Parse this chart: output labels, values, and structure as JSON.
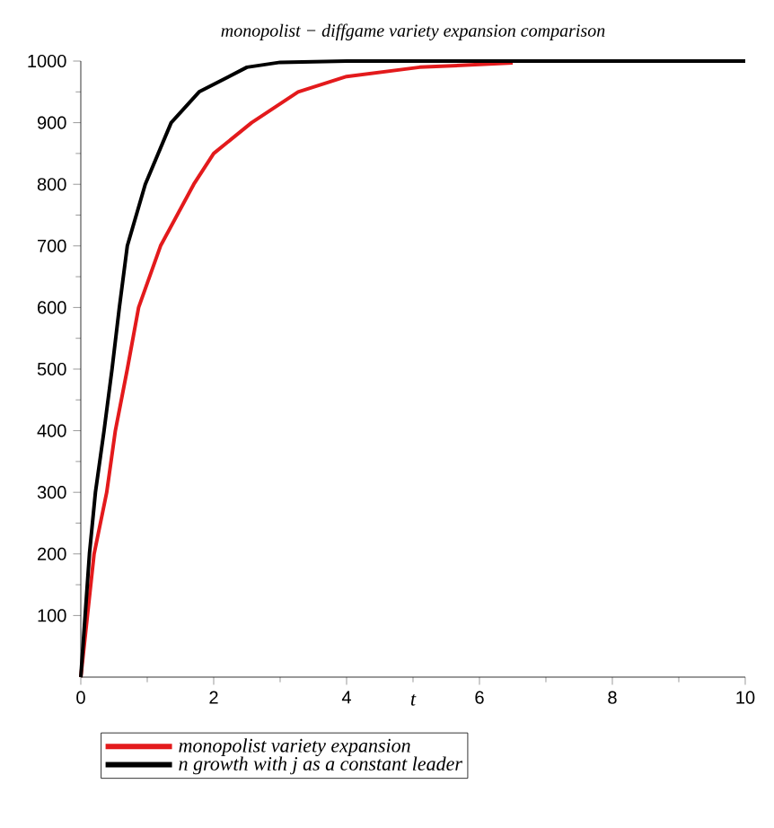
{
  "chart_data": {
    "type": "line",
    "title": "monopolist − diffgame variety expansion comparison",
    "xlabel": "t",
    "xlim": [
      0,
      10
    ],
    "xticks": [
      0,
      2,
      4,
      6,
      8,
      10
    ],
    "ylim": [
      0,
      1000
    ],
    "yticks": [
      100,
      200,
      300,
      400,
      500,
      600,
      700,
      800,
      900,
      1000
    ],
    "legend": "bottom",
    "marker": "none",
    "line_style": "solid",
    "series": [
      {
        "name": "monopolist variety expansion",
        "color": "#e31a1c",
        "x": [
          0,
          0.1,
          0.2,
          0.39,
          0.52,
          0.7,
          0.87,
          1.2,
          1.7,
          2.0,
          2.57,
          3.27,
          4,
          5.1,
          6.5
        ],
        "values": [
          0,
          100,
          200,
          300,
          400,
          500,
          600,
          700,
          800,
          850,
          900,
          950,
          975,
          990,
          997
        ]
      },
      {
        "name": "n growth with j as a constant leader",
        "color": "#000000",
        "x": [
          0,
          0.13,
          0.22,
          0.35,
          0.47,
          0.58,
          0.7,
          0.97,
          1.36,
          1.78,
          2.5,
          3,
          4,
          10
        ],
        "values": [
          0,
          200,
          300,
          400,
          500,
          600,
          700,
          800,
          900,
          950,
          990,
          998,
          1000,
          1000
        ]
      }
    ]
  }
}
